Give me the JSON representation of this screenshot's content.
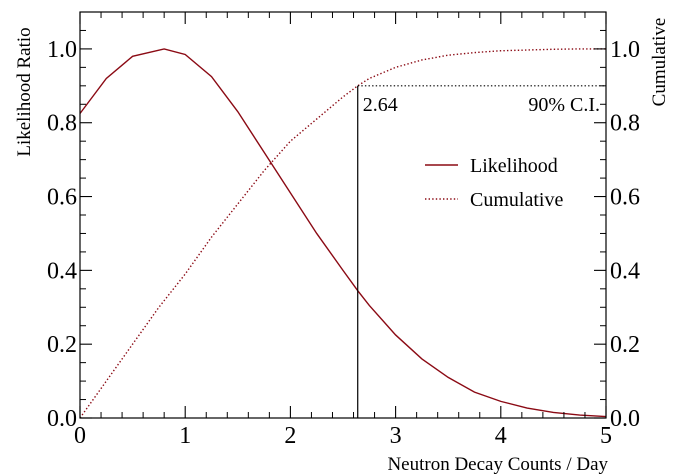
{
  "chart_data": {
    "type": "line",
    "xlabel": "Neutron Decay Counts / Day",
    "ylabel_left": "Likelihood Ratio",
    "ylabel_right": "Cumulative",
    "xlim": [
      0,
      5
    ],
    "ylim_left": [
      0,
      1.1
    ],
    "ylim_right": [
      0,
      1.1
    ],
    "x_ticks": [
      "0",
      "1",
      "2",
      "3",
      "4",
      "5"
    ],
    "y_ticks_left": [
      "0.0",
      "0.2",
      "0.4",
      "0.6",
      "0.8",
      "1.0"
    ],
    "y_ticks_right": [
      "0.0",
      "0.2",
      "0.4",
      "0.6",
      "0.8",
      "1.0"
    ],
    "grid": false,
    "legend_position": "right",
    "series": [
      {
        "name": "Likelihood",
        "style": "solid",
        "color": "#8b0a14",
        "x": [
          0,
          0.25,
          0.5,
          0.8,
          1.0,
          1.25,
          1.5,
          1.75,
          2.0,
          2.25,
          2.5,
          2.64,
          2.75,
          3.0,
          3.25,
          3.5,
          3.75,
          4.0,
          4.25,
          4.5,
          4.75,
          5.0
        ],
        "y": [
          0.825,
          0.92,
          0.98,
          1.0,
          0.985,
          0.925,
          0.83,
          0.72,
          0.61,
          0.5,
          0.4,
          0.345,
          0.305,
          0.225,
          0.16,
          0.11,
          0.07,
          0.045,
          0.027,
          0.015,
          0.008,
          0.004
        ]
      },
      {
        "name": "Cumulative",
        "style": "dotted",
        "color": "#8b0a14",
        "x": [
          0,
          0.25,
          0.5,
          0.75,
          1.0,
          1.25,
          1.5,
          1.75,
          2.0,
          2.25,
          2.5,
          2.64,
          2.75,
          3.0,
          3.25,
          3.5,
          3.75,
          4.0,
          4.25,
          4.5,
          4.75,
          5.0
        ],
        "y": [
          0.0,
          0.1,
          0.2,
          0.3,
          0.39,
          0.49,
          0.58,
          0.67,
          0.75,
          0.81,
          0.87,
          0.9,
          0.92,
          0.95,
          0.97,
          0.983,
          0.99,
          0.995,
          0.997,
          0.999,
          1.0,
          1.0
        ]
      }
    ],
    "annotations": {
      "limit_value": 2.64,
      "limit_label": "2.64",
      "ci_level": 0.9,
      "ci_label": "90% C.I."
    }
  }
}
